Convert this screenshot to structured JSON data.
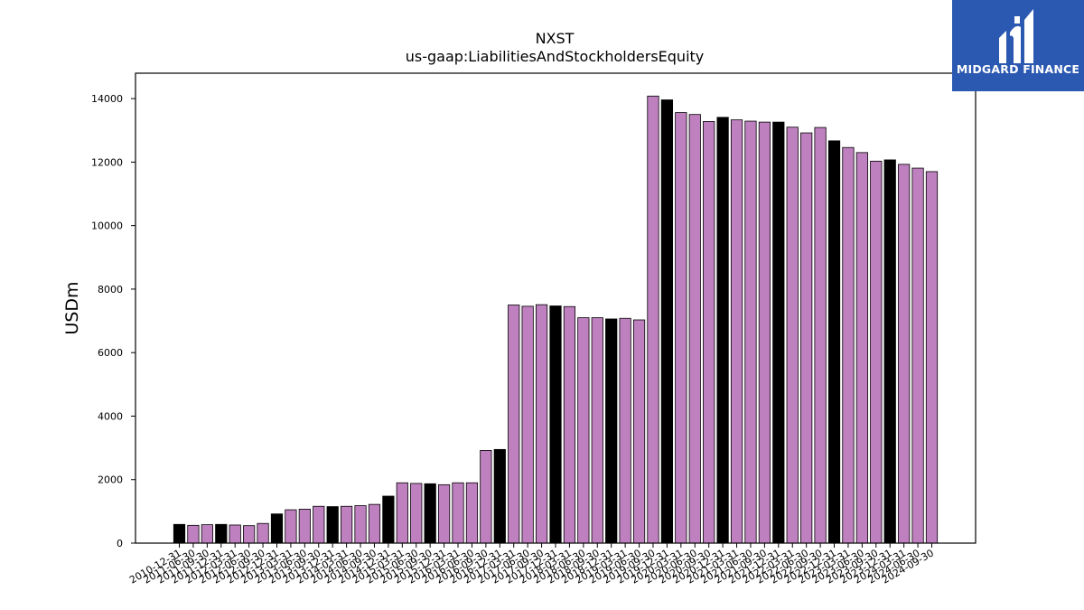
{
  "brand": {
    "name": "MIDGARD FINANCE",
    "color": "#2b58b0",
    "icon": "midgard-logo-icon"
  },
  "chart_data": {
    "type": "bar",
    "title": "NXST",
    "subtitle": "us-gaap:LiabilitiesAndStockholdersEquity",
    "xlabel": "",
    "ylabel": "USDm",
    "ylim": [
      0,
      14800
    ],
    "yticks": [
      0,
      2000,
      4000,
      6000,
      8000,
      10000,
      12000,
      14000
    ],
    "grid": false,
    "colors": {
      "default": "#bf80bf",
      "highlight": "#000000"
    },
    "categories": [
      "2010-12-31",
      "2011-06-30",
      "2011-09-30",
      "2011-12-31",
      "2012-03-31",
      "2012-06-30",
      "2012-09-30",
      "2012-12-31",
      "2013-03-31",
      "2013-06-30",
      "2013-09-30",
      "2013-12-31",
      "2014-03-31",
      "2014-06-30",
      "2014-09-30",
      "2014-12-31",
      "2015-03-31",
      "2015-06-30",
      "2015-09-30",
      "2015-12-31",
      "2016-03-31",
      "2016-06-30",
      "2016-09-30",
      "2016-12-31",
      "2017-03-31",
      "2017-06-30",
      "2017-09-30",
      "2017-12-31",
      "2018-03-31",
      "2018-06-30",
      "2018-09-30",
      "2018-12-31",
      "2019-03-31",
      "2019-06-30",
      "2019-09-30",
      "2019-12-31",
      "2020-03-31",
      "2020-06-30",
      "2020-09-30",
      "2020-12-31",
      "2021-03-31",
      "2021-06-30",
      "2021-09-30",
      "2021-12-31",
      "2022-03-31",
      "2022-06-30",
      "2022-09-30",
      "2022-12-31",
      "2023-03-31",
      "2023-06-30",
      "2023-09-30",
      "2023-12-31",
      "2024-03-31",
      "2024-06-30",
      "2024-09-30"
    ],
    "values": [
      590,
      560,
      580,
      590,
      570,
      550,
      620,
      920,
      1050,
      1070,
      1160,
      1150,
      1160,
      1180,
      1220,
      1480,
      1900,
      1880,
      1870,
      1840,
      1900,
      1900,
      2920,
      2950,
      7500,
      7460,
      7510,
      7470,
      7450,
      7100,
      7100,
      7060,
      7080,
      7030,
      14080,
      13960,
      13560,
      13500,
      13280,
      13410,
      13330,
      13290,
      13260,
      13260,
      13100,
      12920,
      13090,
      12670,
      12460,
      12300,
      12030,
      12070,
      11930,
      11810,
      11700
    ],
    "highlight": [
      true,
      false,
      false,
      true,
      false,
      false,
      false,
      true,
      false,
      false,
      false,
      true,
      false,
      false,
      false,
      true,
      false,
      false,
      true,
      false,
      false,
      false,
      false,
      true,
      false,
      false,
      false,
      true,
      false,
      false,
      false,
      true,
      false,
      false,
      false,
      true,
      false,
      false,
      false,
      true,
      false,
      false,
      false,
      true,
      false,
      false,
      false,
      true,
      false,
      false,
      false,
      true,
      false,
      false,
      false
    ]
  }
}
